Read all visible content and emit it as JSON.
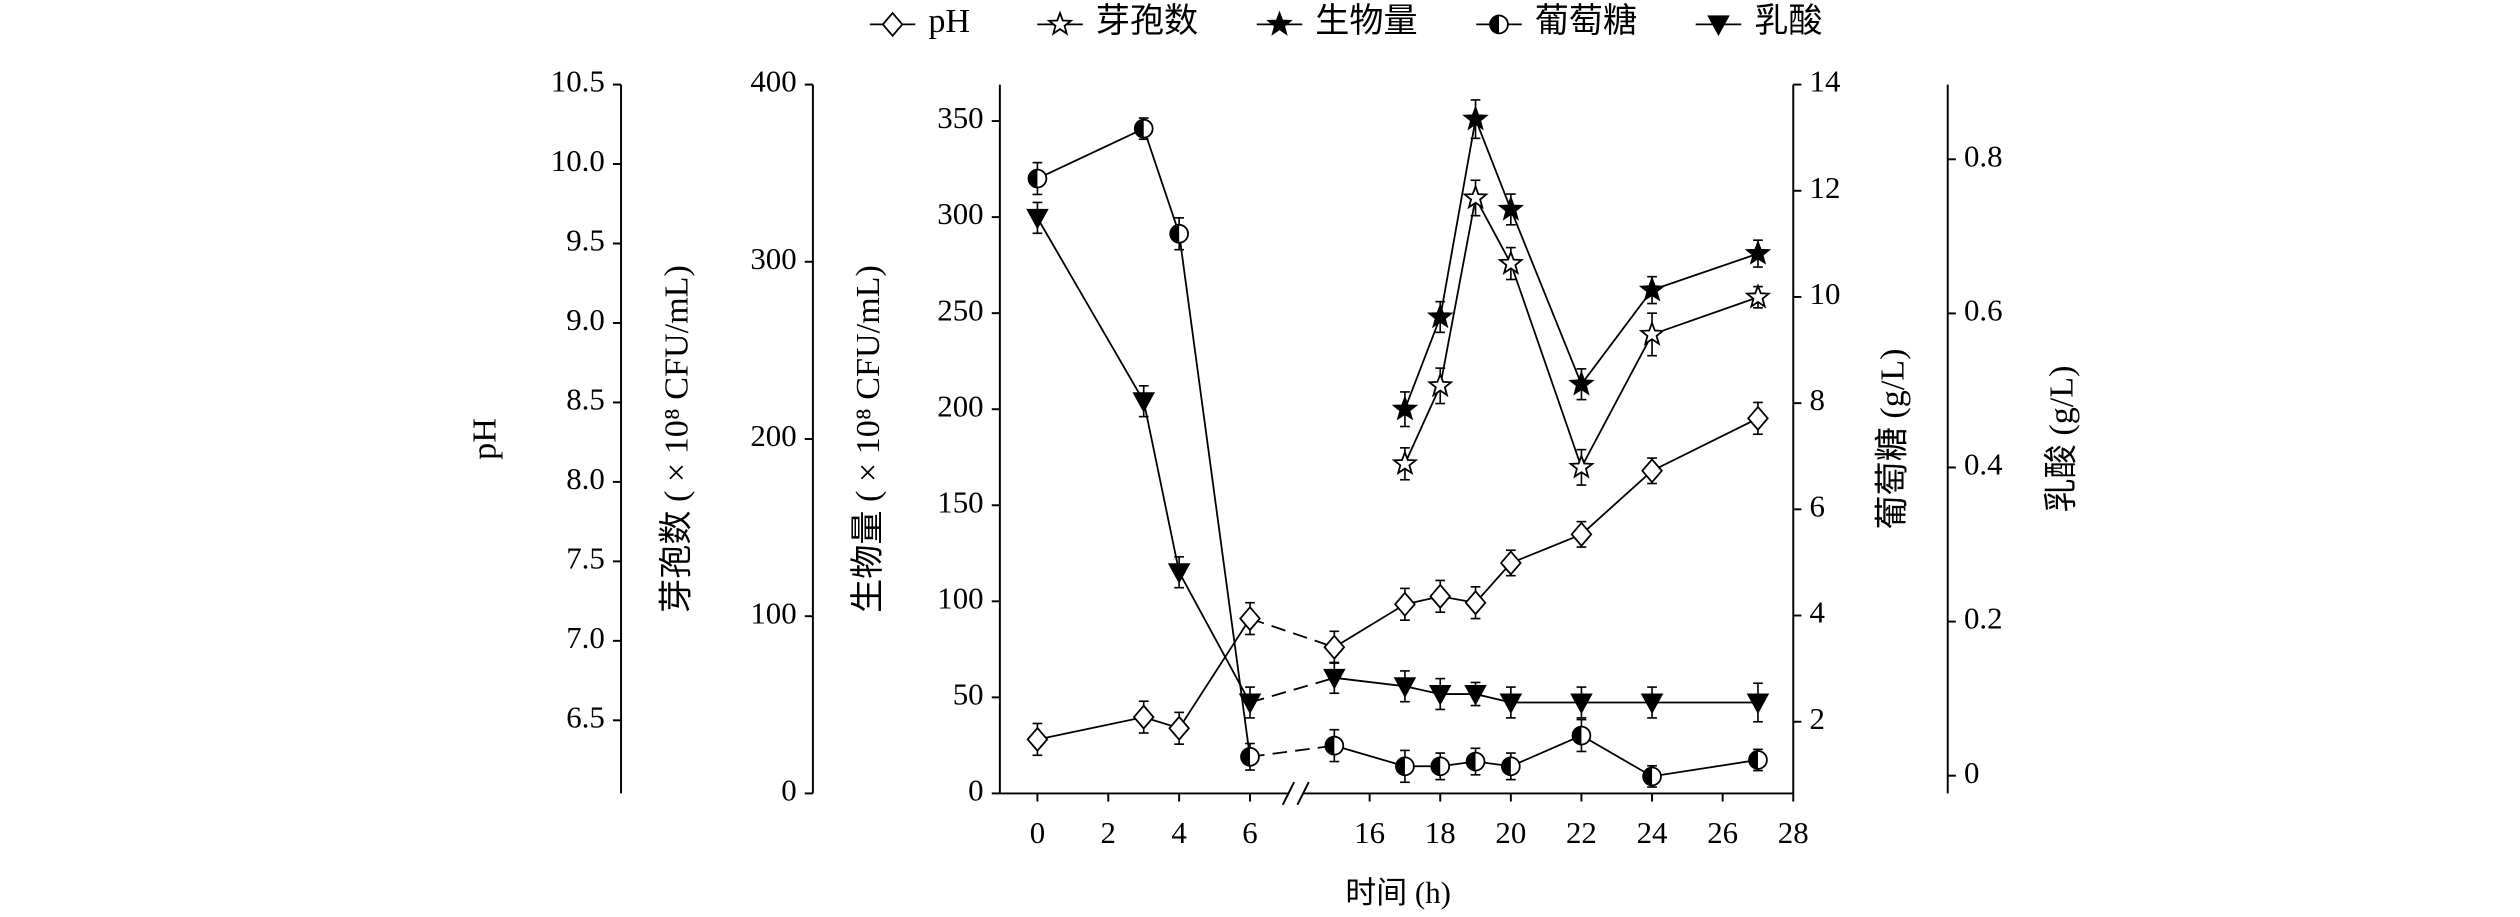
{
  "chart_data": {
    "type": "line",
    "x_label": "时间 (h)",
    "x": [
      0,
      3,
      4,
      6,
      15,
      17,
      18,
      19,
      20,
      22,
      24,
      27
    ],
    "xlim": [
      -1.06,
      28
    ],
    "x_break": [
      7.2,
      14
    ],
    "xticks": [
      0,
      2,
      4,
      6,
      16,
      18,
      20,
      22,
      24,
      26,
      28
    ],
    "axes": [
      {
        "label": "pH",
        "ylim": [
          6.04,
          10.5
        ],
        "yticks": [
          6.5,
          {
            "value": 7,
            "label": "7.0"
          },
          7.5,
          {
            "value": 8,
            "label": "8.0"
          },
          8.5,
          {
            "value": 9,
            "label": "9.0"
          },
          9.5,
          {
            "value": 10,
            "label": "10.0"
          },
          10.5
        ]
      },
      {
        "label": "芽孢数 ( × 10⁸ CFU/mL)",
        "ylim": [
          0,
          400
        ],
        "yticks": [
          0,
          100,
          200,
          300,
          400
        ]
      },
      {
        "label": "生物量 ( × 10⁸ CFU/mL)",
        "ylim": [
          0,
          369
        ],
        "yticks": [
          0,
          50,
          100,
          150,
          200,
          250,
          300,
          350
        ]
      },
      {
        "label": "葡萄糖 (g/L)",
        "ylim": [
          0.65,
          14
        ],
        "yticks": [
          2,
          4,
          6,
          8,
          10,
          12,
          14
        ]
      },
      {
        "label": "乳酸 (g/L)",
        "ylim": [
          -0.023,
          0.897
        ],
        "yticks": [
          0,
          0.2,
          0.4,
          0.6,
          0.8
        ]
      }
    ],
    "series": [
      {
        "name": "pH",
        "axis": 0,
        "marker": "diamond",
        "color": "#000000",
        "values": [
          6.38,
          6.52,
          6.45,
          7.14,
          6.96,
          7.23,
          7.28,
          7.24,
          7.49,
          7.67,
          8.07,
          8.4
        ],
        "errors": [
          0.1,
          0.1,
          0.1,
          0.1,
          0.1,
          0.1,
          0.1,
          0.1,
          0.08,
          0.08,
          0.08,
          0.1
        ]
      },
      {
        "name": "芽孢数",
        "axis": 1,
        "marker": "open-star",
        "color": "#000000",
        "values": [
          null,
          null,
          null,
          null,
          null,
          186,
          230,
          336,
          299,
          184,
          259,
          280
        ],
        "errors": [
          null,
          null,
          null,
          null,
          null,
          9,
          10,
          10,
          9,
          10,
          12,
          6
        ]
      },
      {
        "name": "生物量",
        "axis": 2,
        "marker": "star",
        "color": "#000000",
        "values": [
          null,
          null,
          null,
          null,
          null,
          200,
          248,
          351,
          304,
          213,
          262,
          281
        ],
        "errors": [
          null,
          null,
          null,
          null,
          null,
          9,
          8,
          10,
          8,
          8,
          7,
          7
        ]
      },
      {
        "name": "葡萄糖",
        "axis": 3,
        "marker": "half-circle",
        "color": "#000000",
        "values": [
          12.23,
          13.17,
          11.19,
          1.34,
          1.55,
          1.16,
          1.16,
          1.25,
          1.16,
          1.74,
          0.97,
          1.28
        ],
        "errors": [
          0.3,
          0.2,
          0.3,
          0.25,
          0.3,
          0.3,
          0.25,
          0.25,
          0.25,
          0.3,
          0.2,
          0.2
        ]
      },
      {
        "name": "乳酸",
        "axis": 4,
        "marker": "down-triangle",
        "color": "#000000",
        "values": [
          0.724,
          0.486,
          0.264,
          0.095,
          0.127,
          0.116,
          0.106,
          0.106,
          0.095,
          0.095,
          0.095,
          0.095
        ],
        "errors": [
          0.02,
          0.02,
          0.02,
          0.02,
          0.02,
          0.02,
          0.02,
          0.015,
          0.02,
          0.02,
          0.02,
          0.025
        ]
      }
    ]
  }
}
